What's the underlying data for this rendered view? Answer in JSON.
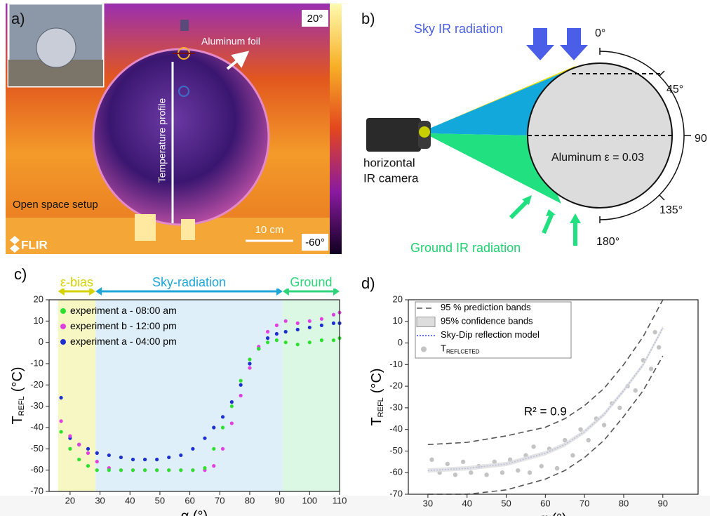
{
  "panel_a": {
    "label": "a)",
    "annotation": "Aluminum foil",
    "profile_label": "Temperature profile",
    "setup": "Open space setup",
    "scale": "10 cm",
    "brand": "FLIR",
    "colorbar_max": "20°",
    "colorbar_min": "-60°"
  },
  "panel_b": {
    "label": "b)",
    "sky": "Sky IR radiation",
    "ground": "Ground IR radiation",
    "camera_line1": "horizontal",
    "camera_line2": "IR camera",
    "material": "Aluminum ε = 0.03",
    "angles": [
      "0°",
      "45°",
      "90",
      "135°",
      "180°"
    ]
  },
  "chart_data": [
    {
      "type": "scatter",
      "panel_label": "c)",
      "x_label": "α (°)",
      "y_label": {
        "symbol": "T",
        "subscript": "REFL",
        "unit": "(°C)"
      },
      "xlim": [
        13,
        110
      ],
      "ylim": [
        -70,
        20
      ],
      "xticks": [
        20,
        30,
        40,
        50,
        60,
        70,
        80,
        90,
        100,
        110
      ],
      "yticks": [
        -70,
        -60,
        -50,
        -40,
        -30,
        -20,
        -10,
        0,
        10,
        20
      ],
      "regions": [
        {
          "label": "ε-bias",
          "from": 16,
          "to": 28.5,
          "color": "#f7f7c4",
          "label_color": "#d6d200"
        },
        {
          "label": "Sky-radiation",
          "from": 28.5,
          "to": 91,
          "color": "#dfeff9",
          "label_color": "#1ea6d8"
        },
        {
          "label": "Ground",
          "from": 91,
          "to": 110,
          "color": "#dbf8e5",
          "label_color": "#2ed47a"
        }
      ],
      "legend": "upper left",
      "series": [
        {
          "name": "experiment a - 08:00 am",
          "color": "#2ee02e",
          "x": [
            17,
            20,
            23,
            26,
            29,
            33,
            37,
            41,
            45,
            49,
            53,
            57,
            61,
            65,
            68,
            71,
            74,
            77,
            80,
            83,
            86,
            89,
            92,
            96,
            100,
            104,
            108,
            110
          ],
          "values": [
            -42,
            -50,
            -55,
            -58,
            -60,
            -60,
            -60,
            -60,
            -60,
            -60,
            -60,
            -60,
            -60,
            -59,
            -50,
            -40,
            -30,
            -18,
            -8,
            -3,
            0,
            1,
            0,
            -1,
            0,
            1,
            1,
            2
          ]
        },
        {
          "name": "experiment b - 12:00 pm",
          "color": "#e040e0",
          "x": [
            17,
            20,
            23,
            26,
            29,
            33,
            37,
            41,
            45,
            49,
            53,
            57,
            61,
            65,
            68,
            71,
            74,
            77,
            80,
            83,
            86,
            89,
            92,
            96,
            100,
            104,
            108,
            110
          ],
          "values": [
            -37,
            -44,
            -48,
            -52,
            -56,
            -59,
            -60,
            -60,
            -60,
            -60,
            -60,
            -60,
            -60,
            -60,
            -58,
            -50,
            -38,
            -25,
            -12,
            -2,
            5,
            8,
            10,
            9,
            10,
            11,
            13,
            14
          ]
        },
        {
          "name": "experiment a - 04:00 pm",
          "color": "#1c2fd0",
          "x": [
            17,
            20,
            23,
            26,
            29,
            33,
            37,
            41,
            45,
            49,
            53,
            57,
            61,
            65,
            68,
            71,
            74,
            77,
            80,
            83,
            86,
            89,
            92,
            96,
            100,
            104,
            108,
            110
          ],
          "values": [
            -26,
            -45,
            -48,
            -50,
            -52,
            -53,
            -54,
            -55,
            -55,
            -55,
            -54,
            -53,
            -50,
            -45,
            -40,
            -35,
            -28,
            -20,
            -10,
            -3,
            2,
            4,
            5,
            6,
            7,
            8,
            9,
            9
          ]
        }
      ]
    },
    {
      "type": "line",
      "panel_label": "d)",
      "x_label": "α (°)",
      "y_label": {
        "symbol": "T",
        "subscript": "REFL",
        "unit": "(°C)"
      },
      "xlim": [
        25,
        99
      ],
      "ylim": [
        -70,
        20
      ],
      "xticks": [
        30,
        40,
        50,
        60,
        70,
        80,
        90
      ],
      "yticks": [
        -70,
        -60,
        -50,
        -40,
        -30,
        -20,
        -10,
        0,
        10,
        20
      ],
      "annotation": "R² = 0.9",
      "legend": "upper left",
      "series": [
        {
          "name": "95 % prediction bands",
          "color": "#555555",
          "style": "dashed",
          "x": [
            30,
            40,
            50,
            60,
            65,
            70,
            75,
            80,
            85,
            90
          ],
          "upper": [
            -47,
            -46,
            -43,
            -39,
            -35,
            -29,
            -21,
            -10,
            3,
            20
          ],
          "lower": [
            -70,
            -70,
            -68,
            -63,
            -59,
            -53,
            -45,
            -34,
            -22,
            -6
          ]
        },
        {
          "name": "95% confidence bands",
          "color": "#dddddd",
          "style": "band",
          "x": [
            30,
            40,
            50,
            60,
            65,
            70,
            75,
            80,
            85,
            90
          ],
          "upper": [
            -58,
            -57,
            -55,
            -50,
            -46,
            -40,
            -32,
            -21,
            -9,
            8
          ],
          "lower": [
            -60,
            -59,
            -57,
            -52,
            -48,
            -42,
            -34,
            -23,
            -11,
            6
          ]
        },
        {
          "name": "Sky-Dip reflection model",
          "color": "#3344dd",
          "style": "dotted",
          "x": [
            30,
            40,
            50,
            60,
            65,
            70,
            75,
            80,
            85,
            90
          ],
          "values": [
            -59,
            -58,
            -56,
            -51,
            -47,
            -41,
            -33,
            -22,
            -10,
            7
          ]
        },
        {
          "name": "T",
          "name_subscript": "REFLCETED",
          "color": "#c4c4c4",
          "style": "points",
          "x": [
            31,
            33,
            35,
            37,
            39,
            41,
            43,
            45,
            47,
            49,
            51,
            53,
            55,
            56,
            57,
            59,
            61,
            63,
            65,
            67,
            69,
            71,
            73,
            75,
            77,
            79,
            81,
            83,
            85,
            87,
            88,
            89
          ],
          "values": [
            -54,
            -60,
            -56,
            -61,
            -55,
            -60,
            -57,
            -61,
            -55,
            -60,
            -54,
            -59,
            -52,
            -60,
            -48,
            -57,
            -49,
            -58,
            -45,
            -52,
            -40,
            -45,
            -35,
            -38,
            -28,
            -30,
            -20,
            -22,
            -8,
            -12,
            5,
            -2
          ]
        }
      ]
    }
  ]
}
